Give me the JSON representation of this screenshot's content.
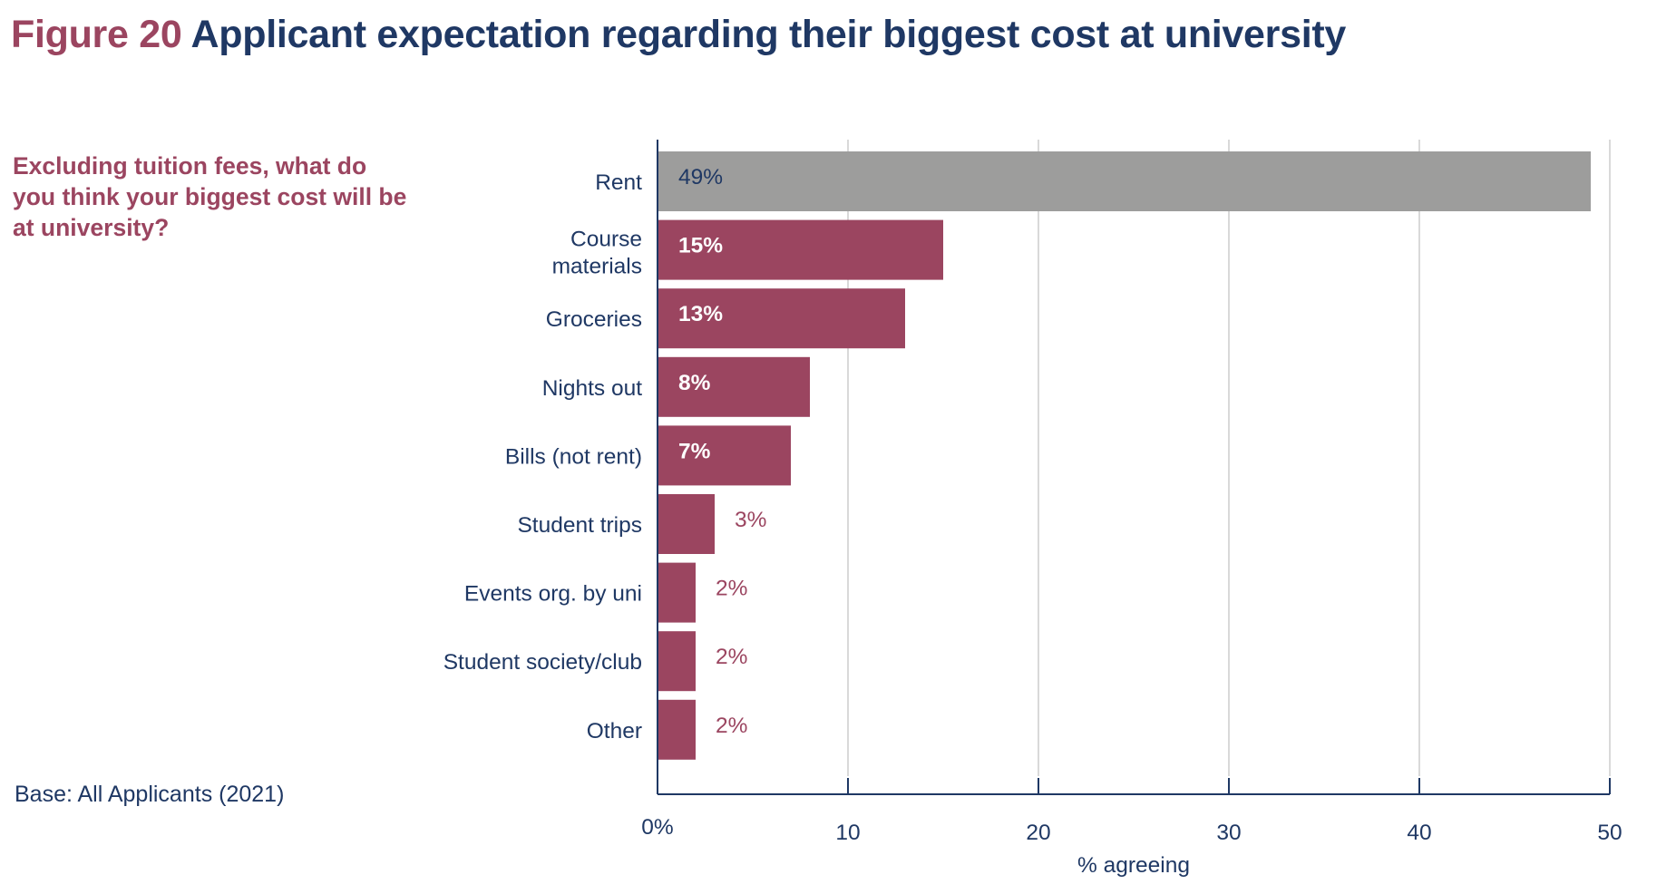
{
  "header": {
    "figure_label": "Figure 20",
    "title": "Applicant expectation regarding their biggest cost at university"
  },
  "question": "Excluding tuition fees, what do you think your biggest cost will be at university?",
  "base_note": "Base: All Applicants (2021)",
  "colors": {
    "highlight_bar": "#9d9d9c",
    "bar": "#9b4560",
    "axis": "#1f3864",
    "grid": "#d9d9d9",
    "label_inside": "#ffffff",
    "label_inside_highlight": "#1f3864",
    "label_outside": "#9b4560"
  },
  "chart_data": {
    "type": "bar",
    "orientation": "horizontal",
    "title": "Applicant expectation regarding their biggest cost at university",
    "xlabel": "% agreeing",
    "ylabel": "",
    "xlim": [
      0,
      50
    ],
    "grid": true,
    "x_ticks": [
      0,
      10,
      20,
      30,
      40,
      50
    ],
    "x_tick_labels": [
      "0%",
      "10",
      "20",
      "30",
      "40",
      "50"
    ],
    "categories": [
      [
        "Rent"
      ],
      [
        "Course",
        "materials"
      ],
      [
        "Groceries"
      ],
      [
        "Nights out"
      ],
      [
        "Bills (not rent)"
      ],
      [
        "Student trips"
      ],
      [
        "Events org. by uni"
      ],
      [
        "Student society/club"
      ],
      [
        "Other"
      ]
    ],
    "values": [
      49,
      15,
      13,
      8,
      7,
      3,
      2,
      2,
      2
    ],
    "data_labels": [
      "49%",
      "15%",
      "13%",
      "8%",
      "7%",
      "3%",
      "2%",
      "2%",
      "2%"
    ],
    "highlighted": [
      true,
      false,
      false,
      false,
      false,
      false,
      false,
      false,
      false
    ]
  }
}
